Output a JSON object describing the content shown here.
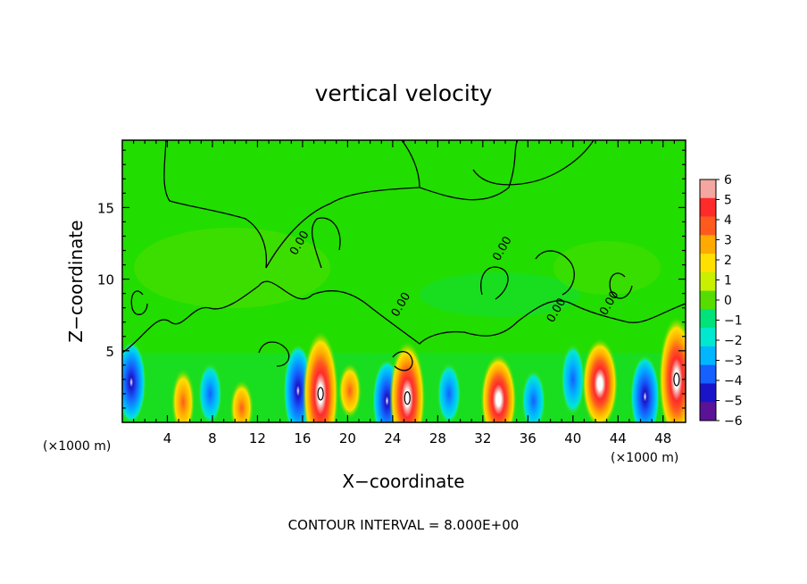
{
  "chart_data": {
    "type": "heatmap",
    "title": "vertical velocity",
    "xlabel": "X−coordinate",
    "ylabel": "Z−coordinate",
    "x_unit_left": "(×1000 m)",
    "x_unit_right": "(×1000 m)",
    "footer": "CONTOUR INTERVAL = 8.000E+00",
    "xlim": [
      0,
      50
    ],
    "ylim": [
      0,
      19.7
    ],
    "x_ticks": [
      4,
      8,
      12,
      16,
      20,
      24,
      28,
      32,
      36,
      40,
      44,
      48
    ],
    "x_tick_labels": [
      "4",
      "8",
      "12",
      "16",
      "20",
      "24",
      "28",
      "32",
      "36",
      "40",
      "44",
      "48"
    ],
    "y_ticks": [
      5,
      10,
      15
    ],
    "y_tick_labels": [
      "5",
      "10",
      "15"
    ],
    "contour_labels": [
      "0.00",
      "0.00",
      "0.00",
      "0.00",
      "0.00"
    ],
    "colorbar": {
      "levels": [
        6,
        5,
        4,
        3,
        2,
        1,
        0,
        -1,
        -2,
        -3,
        -4,
        -5,
        -6
      ],
      "labels": [
        "6",
        "5",
        "4",
        "3",
        "2",
        "1",
        "0",
        "−1",
        "−2",
        "−3",
        "−4",
        "−5",
        "−6"
      ],
      "colors": [
        "#f4a6a0",
        "#ff2a2a",
        "#ff5a1e",
        "#ffaa00",
        "#ffe000",
        "#c8f000",
        "#55dd00",
        "#00e27a",
        "#00e8d0",
        "#00b6ff",
        "#1560ff",
        "#1a14c8",
        "#5a1296"
      ]
    },
    "updrafts": [
      {
        "x": 17.6,
        "z": 2.0,
        "w": 8.0
      },
      {
        "x": 25.3,
        "z": 1.7,
        "w": 7.0
      },
      {
        "x": 33.4,
        "z": 1.6,
        "w": 5.0
      },
      {
        "x": 42.4,
        "z": 2.7,
        "w": 5.0
      },
      {
        "x": 49.2,
        "z": 3.0,
        "w": 8.0
      },
      {
        "x": 5.4,
        "z": 1.4,
        "w": 3.0
      },
      {
        "x": 20.2,
        "z": 2.2,
        "w": 2.0
      },
      {
        "x": 10.6,
        "z": 1.0,
        "w": 2.0
      }
    ],
    "downdrafts": [
      {
        "x": 0.8,
        "z": 2.8,
        "w": -5.0
      },
      {
        "x": 15.6,
        "z": 2.2,
        "w": -6.0
      },
      {
        "x": 23.5,
        "z": 1.5,
        "w": -5.0
      },
      {
        "x": 46.4,
        "z": 1.8,
        "w": -5.0
      },
      {
        "x": 40.0,
        "z": 3.0,
        "w": -4.0
      },
      {
        "x": 7.8,
        "z": 2.0,
        "w": -3.0
      },
      {
        "x": 29.0,
        "z": 2.0,
        "w": -3.0
      },
      {
        "x": 36.5,
        "z": 1.5,
        "w": -3.0
      }
    ]
  }
}
